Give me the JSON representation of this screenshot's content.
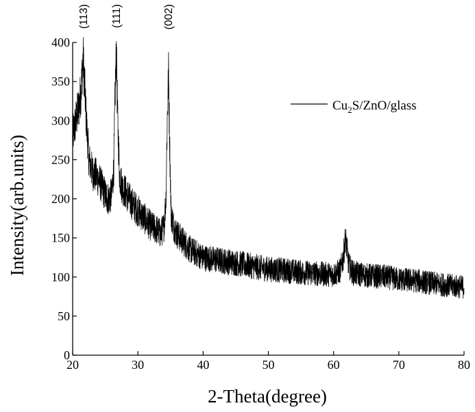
{
  "chart_data": {
    "type": "line",
    "xlabel": "2-Theta(degree)",
    "ylabel": "Intensity(arb.units)",
    "xlim": [
      20,
      80
    ],
    "ylim": [
      0,
      400
    ],
    "xticks": [
      20,
      30,
      40,
      50,
      60,
      70,
      80
    ],
    "yticks": [
      0,
      50,
      100,
      150,
      200,
      250,
      300,
      350,
      400
    ],
    "grid": false,
    "legend_position": "top-right",
    "line_color": "#000000",
    "peak_annotations": [
      {
        "label": "(113)",
        "x": 21.7
      },
      {
        "label": "(111)",
        "x": 26.7
      },
      {
        "label": "(002)",
        "x": 34.7
      }
    ],
    "series": [
      {
        "name": "Cu2S/ZnO/glass",
        "legend_main": "Cu",
        "legend_sub": "2",
        "legend_rest": "S/ZnO/glass",
        "x": [
          20.0,
          20.5,
          21.0,
          21.3,
          21.6,
          21.8,
          22.1,
          22.5,
          23.0,
          23.5,
          24.0,
          24.5,
          25.0,
          25.5,
          26.0,
          26.3,
          26.5,
          26.7,
          26.9,
          27.2,
          27.6,
          28.0,
          29.0,
          30.0,
          31.0,
          32.0,
          33.0,
          33.5,
          34.0,
          34.3,
          34.5,
          34.7,
          34.9,
          35.1,
          35.5,
          36.0,
          37.0,
          38.0,
          40.0,
          42.0,
          45.0,
          48.0,
          50.0,
          53.0,
          55.0,
          58.0,
          60.0,
          61.0,
          61.5,
          61.8,
          62.0,
          62.3,
          63.0,
          65.0,
          68.0,
          70.0,
          73.0,
          75.0,
          78.0,
          80.0
        ],
        "y": [
          280,
          300,
          320,
          340,
          380,
          350,
          300,
          250,
          235,
          230,
          225,
          215,
          205,
          200,
          205,
          240,
          330,
          390,
          300,
          230,
          215,
          210,
          195,
          185,
          175,
          165,
          160,
          155,
          165,
          200,
          300,
          360,
          260,
          180,
          165,
          155,
          145,
          135,
          125,
          122,
          118,
          113,
          110,
          108,
          106,
          104,
          103,
          108,
          125,
          150,
          140,
          115,
          105,
          102,
          100,
          97,
          95,
          92,
          89,
          87
        ]
      }
    ]
  }
}
